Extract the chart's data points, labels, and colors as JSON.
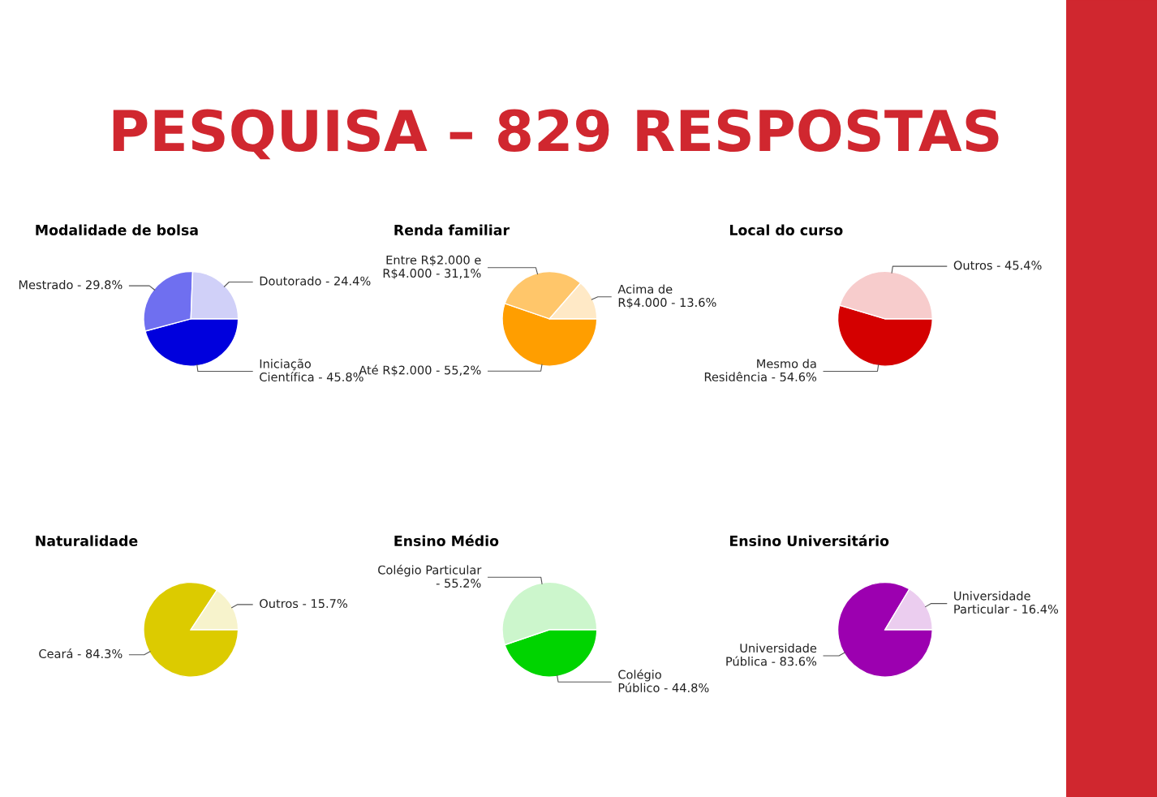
{
  "chart_data": [
    {
      "type": "other",
      "title": "PESQUISA – 829 RESPOSTAS",
      "color": "#d0272f"
    },
    {
      "type": "pie",
      "title": "Modalidade de bolsa",
      "categories": [
        "Iniciação Científica - 45.8%",
        "Mestrado - 29.8%",
        "Doutorado - 24.4%"
      ],
      "values": [
        45.8,
        29.8,
        24.4
      ],
      "colors": [
        "#0000dd",
        "#6f6ff0",
        "#d0d0f8"
      ]
    },
    {
      "type": "pie",
      "title": "Renda familiar",
      "categories": [
        "Até R$2.000 - 55,2%",
        "Entre R$2.000 e R$4.000 - 31,1%",
        "Acima de R$4.000 - 13.6%"
      ],
      "values": [
        55.2,
        31.1,
        13.6
      ],
      "colors": [
        "#ff9e00",
        "#ffc66a",
        "#ffe9c6"
      ]
    },
    {
      "type": "pie",
      "title": "Local do curso",
      "categories": [
        "Mesmo da Residência - 54.6%",
        "Outros - 45.4%"
      ],
      "values": [
        54.6,
        45.4
      ],
      "colors": [
        "#d40000",
        "#f7cccc"
      ]
    },
    {
      "type": "pie",
      "title": "Naturalidade",
      "categories": [
        "Ceará - 84.3%",
        "Outros - 15.7%"
      ],
      "values": [
        84.3,
        15.7
      ],
      "colors": [
        "#dccb00",
        "#f7f3cc"
      ]
    },
    {
      "type": "pie",
      "title": "Ensino Médio",
      "categories": [
        "Colégio Público - 44.8%",
        "Colégio Particular - 55.2%"
      ],
      "values": [
        44.8,
        55.2
      ],
      "colors": [
        "#00d400",
        "#ccf6cc"
      ]
    },
    {
      "type": "pie",
      "title": "Ensino Universitário",
      "categories": [
        "Universidade Pública - 83.6%",
        "Universidade Particular - 16.4%"
      ],
      "values": [
        83.6,
        16.4
      ],
      "colors": [
        "#9c00b0",
        "#ebcdef"
      ]
    }
  ]
}
